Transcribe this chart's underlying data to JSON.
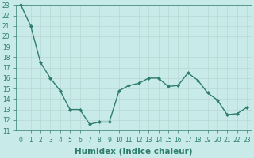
{
  "x": [
    0,
    1,
    2,
    3,
    4,
    5,
    6,
    7,
    8,
    9,
    10,
    11,
    12,
    13,
    14,
    15,
    16,
    17,
    18,
    19,
    20,
    21,
    22,
    23
  ],
  "y": [
    23,
    21,
    17.5,
    16,
    14.8,
    13,
    13,
    11.6,
    11.8,
    11.8,
    14.8,
    15.3,
    15.5,
    16,
    16,
    15.2,
    15.3,
    16.5,
    15.8,
    14.6,
    13.9,
    12.5,
    12.6,
    13.2
  ],
  "line_color": "#2e7d6e",
  "marker": "D",
  "marker_size": 2,
  "bg_color": "#c8eae8",
  "grid_color": "#b8d8d5",
  "xlabel": "Humidex (Indice chaleur)",
  "ylim": [
    11,
    23
  ],
  "xlim": [
    -0.5,
    23.5
  ],
  "yticks": [
    11,
    12,
    13,
    14,
    15,
    16,
    17,
    18,
    19,
    20,
    21,
    22,
    23
  ],
  "xticks": [
    0,
    1,
    2,
    3,
    4,
    5,
    6,
    7,
    8,
    9,
    10,
    11,
    12,
    13,
    14,
    15,
    16,
    17,
    18,
    19,
    20,
    21,
    22,
    23
  ],
  "tick_fontsize": 5.5,
  "xlabel_fontsize": 7.5,
  "linewidth": 1.0
}
